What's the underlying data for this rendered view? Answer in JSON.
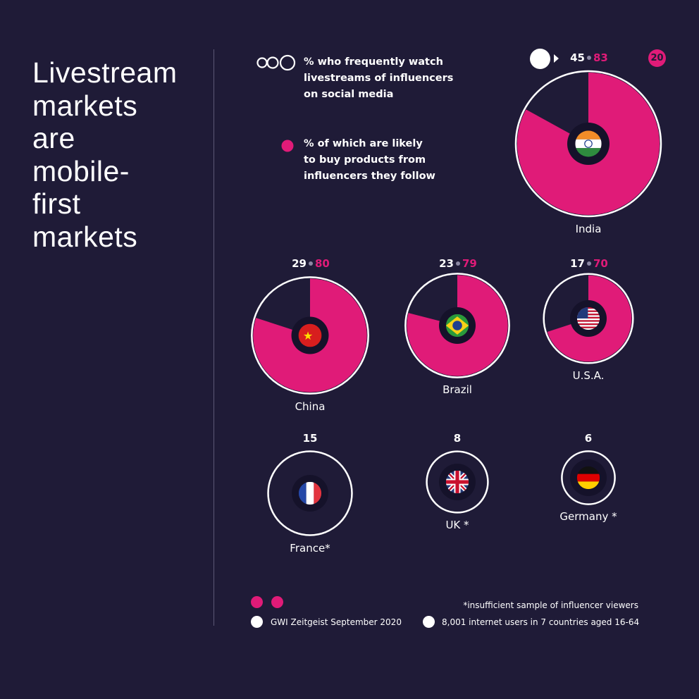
{
  "headline": [
    "Livestream",
    "markets",
    "are",
    "mobile-",
    "first",
    "markets"
  ],
  "legend": {
    "watch_lines": [
      "% who frequently watch",
      "livestreams of influencers",
      "on social media"
    ],
    "buy_lines": [
      "% of which are likely",
      "to buy products from",
      "influencers they follow"
    ]
  },
  "badge": "20",
  "footer": {
    "note": "*insufficient sample of influencer viewers",
    "source": "GWI Zeitgeist September 2020",
    "sample": "8,001 internet users in 7 countries aged 16-64"
  },
  "colors": {
    "background": "#1f1b37",
    "accent": "#e01b78",
    "circle": "#ffffff",
    "muted": "#8c88a3"
  },
  "chart_data": {
    "type": "pie",
    "series": [
      {
        "name": "% who frequently watch livestreams of influencers on social media"
      },
      {
        "name": "% of which are likely to buy products from influencers they follow"
      }
    ],
    "markets": [
      {
        "country": "India",
        "label": "India",
        "watch": 45,
        "buy": 83,
        "watch_label": "45",
        "buy_label": "83",
        "flag": "india-flag"
      },
      {
        "country": "China",
        "label": "China",
        "watch": 29,
        "buy": 80,
        "watch_label": "29",
        "buy_label": "80",
        "flag": "china-flag"
      },
      {
        "country": "Brazil",
        "label": "Brazil",
        "watch": 23,
        "buy": 79,
        "watch_label": "23",
        "buy_label": "79",
        "flag": "brazil-flag"
      },
      {
        "country": "USA",
        "label": "U.S.A.",
        "watch": 17,
        "buy": 70,
        "watch_label": "17",
        "buy_label": "70",
        "flag": "usa-flag"
      },
      {
        "country": "France",
        "label": "France*",
        "watch": 15,
        "buy": null,
        "watch_label": "15",
        "buy_label": "",
        "flag": "france-flag"
      },
      {
        "country": "UK",
        "label": "UK *",
        "watch": 8,
        "buy": null,
        "watch_label": "8",
        "buy_label": "",
        "flag": "uk-flag"
      },
      {
        "country": "Germany",
        "label": "Germany *",
        "watch": 6,
        "buy": null,
        "watch_label": "6",
        "buy_label": "",
        "flag": "germany-flag"
      }
    ]
  }
}
